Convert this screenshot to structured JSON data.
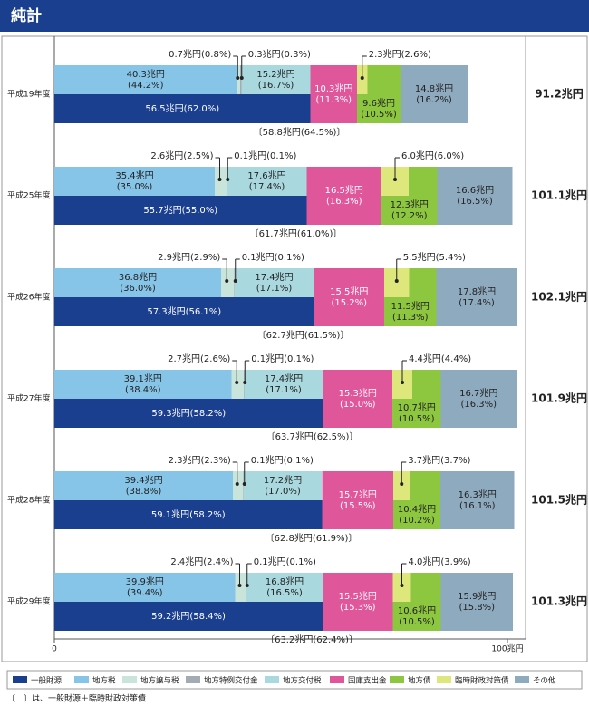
{
  "header": {
    "title": "純計"
  },
  "chart_data": {
    "type": "bar",
    "orientation": "horizontal",
    "categories": [
      "平成19年度",
      "平成25年度",
      "平成26年度",
      "平成27年度",
      "平成28年度",
      "平成29年度"
    ],
    "xlim": [
      0,
      104
    ],
    "xticks": [
      0,
      {
        "value": 100,
        "label": "100兆円"
      }
    ],
    "series": [
      {
        "name": "一般財源",
        "color": "#1b3f8f",
        "values": [
          56.5,
          55.7,
          57.3,
          59.3,
          59.1,
          59.2
        ],
        "value_labels": [
          "56.5兆円(62.0%)",
          "55.7兆円(55.0%)",
          "57.3兆円(56.1%)",
          "59.3兆円(58.2%)",
          "59.1兆円(58.2%)",
          "59.2兆円(58.4%)"
        ]
      },
      {
        "name": "地方税",
        "color": "#86c5e8",
        "values": [
          40.3,
          35.4,
          36.8,
          39.1,
          39.4,
          39.9
        ],
        "value_labels": [
          "40.3兆円(44.2%)",
          "35.4兆円(35.0%)",
          "36.8兆円(36.0%)",
          "39.1兆円(38.4%)",
          "39.4兆円(38.8%)",
          "39.9兆円(39.4%)"
        ]
      },
      {
        "name": "地方譲与税",
        "color": "#c9e4da",
        "values": [
          0.7,
          2.6,
          2.9,
          2.7,
          2.3,
          2.4
        ],
        "value_labels": [
          "0.7兆円(0.8%)",
          "2.6兆円(2.5%)",
          "2.9兆円(2.9%)",
          "2.7兆円(2.6%)",
          "2.3兆円(2.3%)",
          "2.4兆円(2.4%)"
        ]
      },
      {
        "name": "地方特例交付金",
        "color": "#a3abb3",
        "values": [
          0.3,
          0.1,
          0.1,
          0.1,
          0.1,
          0.1
        ],
        "value_labels": [
          "0.3兆円(0.3%)",
          "0.1兆円(0.1%)",
          "0.1兆円(0.1%)",
          "0.1兆円(0.1%)",
          "0.1兆円(0.1%)",
          "0.1兆円(0.1%)"
        ]
      },
      {
        "name": "地方交付税",
        "color": "#a9d8df",
        "values": [
          15.2,
          17.6,
          17.4,
          17.4,
          17.2,
          16.8
        ],
        "value_labels": [
          "15.2兆円(16.7%)",
          "17.6兆円(17.4%)",
          "17.4兆円(17.1%)",
          "17.4兆円(17.1%)",
          "17.2兆円(17.0%)",
          "16.8兆円(16.5%)"
        ]
      },
      {
        "name": "国庫支出金",
        "color": "#e0569b",
        "values": [
          10.3,
          16.5,
          15.5,
          15.3,
          15.7,
          15.5
        ],
        "value_labels": [
          "10.3兆円(11.3%)",
          "16.5兆円(16.3%)",
          "15.5兆円(15.2%)",
          "15.3兆円(15.0%)",
          "15.7兆円(15.5%)",
          "15.5兆円(15.3%)"
        ]
      },
      {
        "name": "地方債",
        "color": "#8dc63f",
        "values": [
          9.6,
          12.3,
          11.5,
          10.7,
          10.4,
          10.6
        ],
        "value_labels": [
          "9.6兆円(10.5%)",
          "12.3兆円(12.2%)",
          "11.5兆円(11.3%)",
          "10.7兆円(10.5%)",
          "10.4兆円(10.2%)",
          "10.6兆円(10.5%)"
        ]
      },
      {
        "name": "臨時財政対策債",
        "color": "#dde77c",
        "values": [
          2.3,
          6.0,
          5.5,
          4.4,
          3.7,
          4.0
        ],
        "value_labels": [
          "2.3兆円(2.6%)",
          "6.0兆円(6.0%)",
          "5.5兆円(5.4%)",
          "4.4兆円(4.4%)",
          "3.7兆円(3.7%)",
          "4.0兆円(3.9%)"
        ]
      },
      {
        "name": "その他",
        "color": "#8eaabf",
        "values": [
          14.8,
          16.6,
          17.8,
          16.7,
          16.3,
          15.9
        ],
        "value_labels": [
          "14.8兆円(16.2%)",
          "16.6兆円(16.5%)",
          "17.8兆円(17.4%)",
          "16.7兆円(16.3%)",
          "16.3兆円(16.1%)",
          "15.9兆円(15.8%)"
        ]
      }
    ],
    "general_plus_temp": {
      "values": [
        58.8,
        61.7,
        62.7,
        63.7,
        62.8,
        63.2
      ],
      "value_labels": [
        "〔58.8兆円(64.5%)〕",
        "〔61.7兆円(61.0%)〕",
        "〔62.7兆円(61.5%)〕",
        "〔63.7兆円(62.5%)〕",
        "〔62.8兆円(61.9%)〕",
        "〔63.2兆円(62.4%)〕"
      ]
    },
    "totals": {
      "values": [
        91.2,
        101.1,
        102.1,
        101.9,
        101.5,
        101.3
      ],
      "value_labels": [
        "91.2兆円",
        "101.1兆円",
        "102.1兆円",
        "101.9兆円",
        "101.5兆円",
        "101.3兆円"
      ]
    },
    "note": "〔　〕は、一般財源＋臨時財政対策債"
  }
}
